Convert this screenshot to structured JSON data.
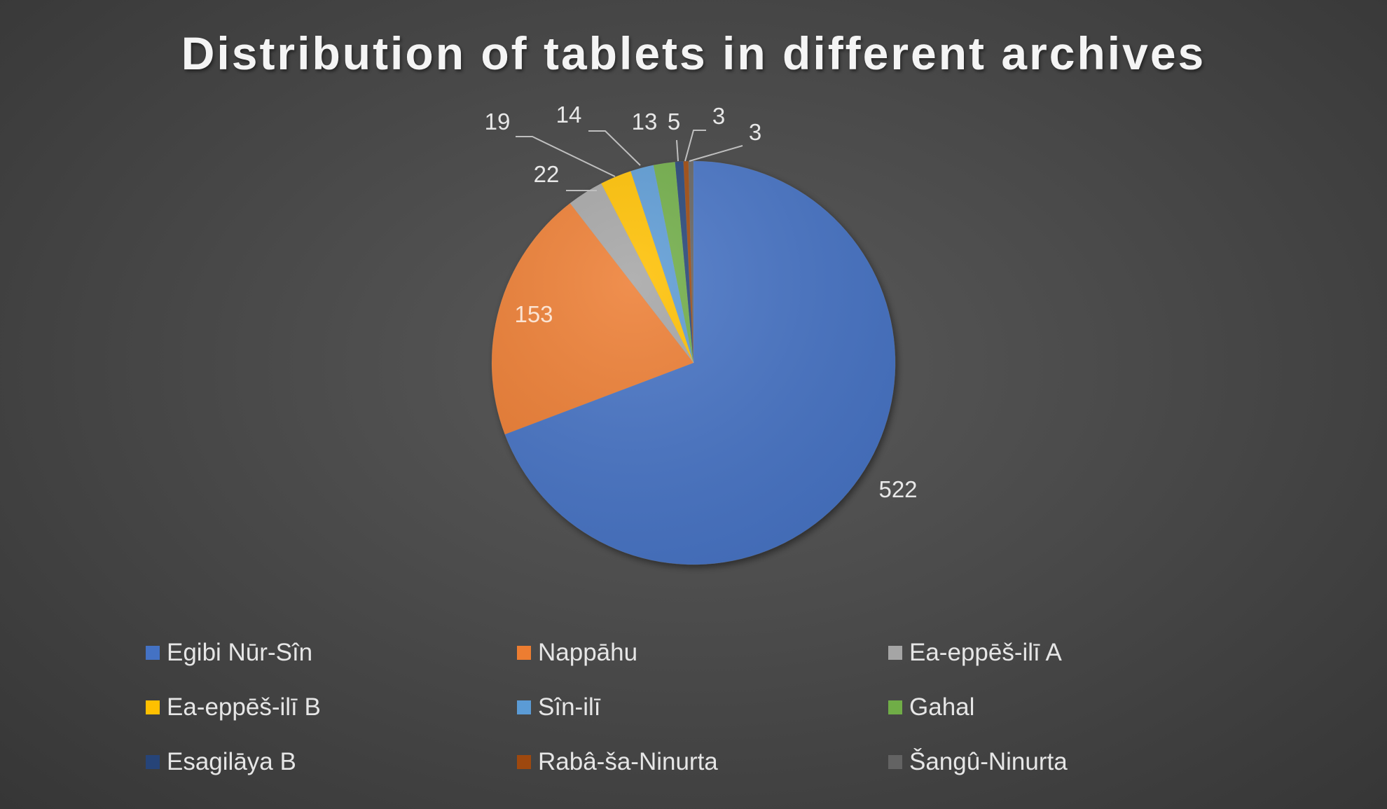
{
  "chart_data": {
    "type": "pie",
    "title": "Distribution of tablets in different archives",
    "categories": [
      "Egibi Nūr-Sîn",
      "Nappāhu",
      "Ea-eppēš-ilī A",
      "Ea-eppēš-ilī B",
      "Sîn-ilī",
      "Gahal",
      "Esagilāya B",
      "Rabâ-ša-Ninurta",
      "Šangû-Ninurta"
    ],
    "values": [
      522,
      153,
      22,
      19,
      14,
      13,
      5,
      3,
      3
    ],
    "data_labels": [
      "522",
      "153",
      "22",
      "19",
      "14",
      "13",
      "5",
      "3",
      "3"
    ],
    "colors": [
      "#4472C4",
      "#ED7D31",
      "#A5A5A5",
      "#FFC000",
      "#5B9BD5",
      "#70AD47",
      "#264478",
      "#9E480E",
      "#636363"
    ],
    "legend_position": "bottom"
  }
}
